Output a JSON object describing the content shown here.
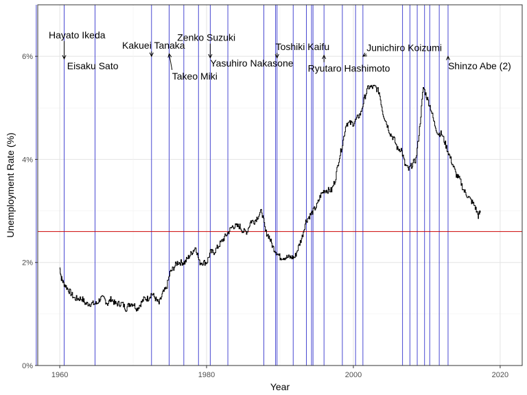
{
  "chart_data": {
    "type": "line",
    "title": "",
    "xlabel": "Year",
    "ylabel": "Unemployment Rate (%)",
    "xlim": [
      1957,
      2023
    ],
    "ylim": [
      0,
      7
    ],
    "x_ticks": [
      1960,
      1980,
      2000,
      2020
    ],
    "x_tick_labels": [
      "1960",
      "1980",
      "2000",
      "2020"
    ],
    "y_ticks": [
      0,
      2,
      4,
      6
    ],
    "y_tick_labels": [
      "0%",
      "2%",
      "4%",
      "6%"
    ],
    "grid": true,
    "reference_line": {
      "y": 2.6,
      "color": "#cc0000"
    },
    "series": [
      {
        "color": "#000000",
        "x": [
          1960.0,
          1960.2,
          1960.5,
          1961.0,
          1961.5,
          1962.0,
          1962.5,
          1963.0,
          1963.5,
          1964.0,
          1964.5,
          1965.0,
          1965.5,
          1966.0,
          1966.5,
          1967.0,
          1967.5,
          1968.0,
          1968.5,
          1969.0,
          1969.5,
          1970.0,
          1970.5,
          1971.0,
          1971.5,
          1972.0,
          1972.5,
          1973.0,
          1973.5,
          1974.0,
          1974.5,
          1975.0,
          1975.5,
          1976.0,
          1976.5,
          1977.0,
          1977.5,
          1978.0,
          1978.5,
          1979.0,
          1979.5,
          1980.0,
          1980.5,
          1981.0,
          1981.5,
          1982.0,
          1982.5,
          1983.0,
          1983.5,
          1984.0,
          1984.5,
          1985.0,
          1985.5,
          1986.0,
          1986.5,
          1987.0,
          1987.5,
          1988.0,
          1988.5,
          1989.0,
          1989.5,
          1990.0,
          1990.5,
          1991.0,
          1991.5,
          1992.0,
          1992.5,
          1993.0,
          1993.5,
          1994.0,
          1994.5,
          1995.0,
          1995.5,
          1996.0,
          1996.5,
          1997.0,
          1997.5,
          1998.0,
          1998.5,
          1999.0,
          1999.5,
          2000.0,
          2000.5,
          2001.0,
          2001.5,
          2002.0,
          2002.5,
          2003.0,
          2003.5,
          2004.0,
          2004.5,
          2005.0,
          2005.5,
          2006.0,
          2006.5,
          2007.0,
          2007.5,
          2008.0,
          2008.5,
          2009.0,
          2009.5,
          2010.0,
          2010.5,
          2011.0,
          2011.5,
          2012.0,
          2012.5,
          2013.0,
          2013.5,
          2014.0,
          2014.5,
          2015.0,
          2015.5,
          2016.0,
          2016.5,
          2017.0,
          2017.3
        ],
        "values": [
          1.9,
          1.7,
          1.6,
          1.5,
          1.4,
          1.3,
          1.3,
          1.3,
          1.2,
          1.2,
          1.2,
          1.2,
          1.3,
          1.3,
          1.2,
          1.3,
          1.2,
          1.2,
          1.2,
          1.1,
          1.2,
          1.2,
          1.1,
          1.2,
          1.3,
          1.3,
          1.4,
          1.3,
          1.2,
          1.4,
          1.5,
          1.8,
          1.9,
          2.0,
          2.0,
          2.0,
          2.1,
          2.2,
          2.3,
          2.0,
          2.0,
          2.0,
          2.2,
          2.2,
          2.3,
          2.4,
          2.5,
          2.6,
          2.7,
          2.7,
          2.7,
          2.6,
          2.6,
          2.8,
          2.8,
          2.9,
          3.0,
          2.6,
          2.5,
          2.3,
          2.2,
          2.1,
          2.1,
          2.1,
          2.1,
          2.1,
          2.3,
          2.5,
          2.8,
          2.9,
          3.0,
          3.1,
          3.3,
          3.4,
          3.4,
          3.4,
          3.6,
          4.0,
          4.3,
          4.7,
          4.7,
          4.7,
          4.8,
          4.9,
          5.2,
          5.4,
          5.4,
          5.4,
          5.3,
          4.9,
          4.7,
          4.5,
          4.4,
          4.2,
          4.2,
          3.9,
          3.8,
          3.9,
          4.0,
          4.6,
          5.4,
          5.2,
          5.0,
          4.7,
          4.5,
          4.5,
          4.3,
          4.1,
          3.9,
          3.7,
          3.6,
          3.4,
          3.3,
          3.2,
          3.1,
          2.9,
          3.0
        ]
      }
    ],
    "vlines": {
      "color": "#3333cc",
      "x": [
        1956.8,
        1960.6,
        1964.8,
        1972.5,
        1974.9,
        1976.9,
        1978.9,
        1980.5,
        1982.9,
        1987.8,
        1989.4,
        1989.6,
        1991.8,
        1993.6,
        1994.3,
        1994.5,
        1996.0,
        1998.5,
        2000.3,
        2001.3,
        2006.7,
        2007.7,
        2008.7,
        2009.7,
        2010.4,
        2011.7,
        2012.9
      ]
    },
    "annotations": [
      {
        "label": "Hayato Ikeda",
        "x": 1960.6,
        "y": 5.95,
        "text_x": 1958.5,
        "text_y": 6.35,
        "anchor": "start"
      },
      {
        "label": "Eisaku Sato",
        "x": 1964.8,
        "y": 6.0,
        "text_x": 1961.0,
        "text_y": 5.75,
        "anchor": "start",
        "arrow": false
      },
      {
        "label": "Kakuei Tanaka",
        "x": 1972.5,
        "y": 6.0,
        "text_x": 1968.5,
        "text_y": 6.15,
        "anchor": "start"
      },
      {
        "label": "Takeo Miki",
        "x": 1974.9,
        "y": 6.05,
        "text_x": 1975.3,
        "text_y": 5.55,
        "anchor": "start"
      },
      {
        "label": "Zenko Suzuki",
        "x": 1980.5,
        "y": 5.97,
        "text_x": 1976.0,
        "text_y": 6.3,
        "anchor": "start"
      },
      {
        "label": "Yasuhiro Nakasone",
        "x": 1982.9,
        "y": 6.0,
        "text_x": 1980.5,
        "text_y": 5.8,
        "anchor": "start",
        "arrow": false
      },
      {
        "label": "Toshiki Kaifu",
        "x": 1989.6,
        "y": 5.97,
        "text_x": 1989.4,
        "text_y": 6.12,
        "anchor": "start"
      },
      {
        "label": "Ryutaro Hashimoto",
        "x": 1996.0,
        "y": 6.02,
        "text_x": 1993.8,
        "text_y": 5.7,
        "anchor": "start"
      },
      {
        "label": "Junichiro Koizumi",
        "x": 2001.3,
        "y": 6.0,
        "text_x": 2001.8,
        "text_y": 6.1,
        "anchor": "start"
      },
      {
        "label": "Shinzo Abe (2)",
        "x": 2012.9,
        "y": 6.0,
        "text_x": 2012.9,
        "text_y": 5.75,
        "anchor": "start"
      }
    ]
  }
}
